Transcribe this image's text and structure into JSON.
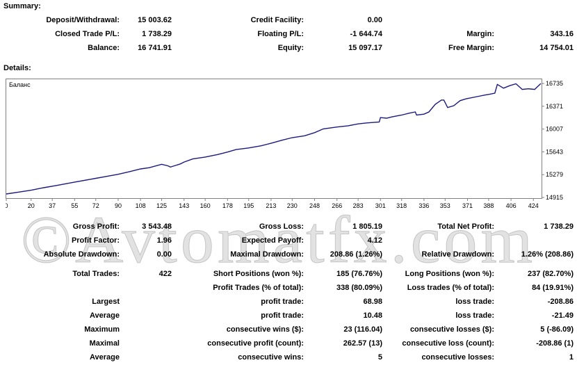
{
  "summary": {
    "title": "Summary:",
    "deposit_label": "Deposit/Withdrawal:",
    "deposit_value": "15 003.62",
    "credit_label": "Credit Facility:",
    "credit_value": "0.00",
    "closed_label": "Closed Trade P/L:",
    "closed_value": "1 738.29",
    "floating_label": "Floating P/L:",
    "floating_value": "-1 644.74",
    "margin_label": "Margin:",
    "margin_value": "343.16",
    "balance_label": "Balance:",
    "balance_value": "16 741.91",
    "equity_label": "Equity:",
    "equity_value": "15 097.17",
    "free_margin_label": "Free Margin:",
    "free_margin_value": "14 754.01"
  },
  "details": {
    "title": "Details:"
  },
  "chart_data": {
    "type": "line",
    "legend": "Баланс",
    "line_color": "#1a1a80",
    "x_ticks": [
      "0",
      "20",
      "37",
      "55",
      "72",
      "90",
      "108",
      "125",
      "143",
      "160",
      "178",
      "195",
      "213",
      "230",
      "248",
      "266",
      "283",
      "301",
      "318",
      "336",
      "353",
      "371",
      "388",
      "406",
      "424"
    ],
    "y_ticks": [
      "16735",
      "16371",
      "16007",
      "15643",
      "15279",
      "14915"
    ],
    "xlim": [
      0,
      430
    ],
    "ylim": [
      14915,
      16780
    ],
    "series": [
      {
        "x": [
          0,
          10,
          20,
          30,
          40,
          55,
          72,
          90,
          100,
          108,
          115,
          125,
          130,
          132,
          140,
          143,
          150,
          160,
          170,
          178,
          185,
          195,
          205,
          213,
          222,
          230,
          240,
          248,
          255,
          266,
          275,
          283,
          290,
          300,
          301,
          306,
          310,
          318,
          324,
          329,
          330,
          336,
          340,
          345,
          350,
          352,
          355,
          360,
          365,
          370,
          380,
          385,
          388,
          393,
          395,
          400,
          405,
          410,
          415,
          420,
          425,
          430
        ],
        "y": [
          14970,
          15000,
          15030,
          15070,
          15105,
          15160,
          15220,
          15285,
          15330,
          15370,
          15390,
          15445,
          15420,
          15400,
          15450,
          15480,
          15530,
          15560,
          15600,
          15640,
          15680,
          15705,
          15740,
          15780,
          15830,
          15870,
          15900,
          15950,
          16010,
          16040,
          16060,
          16090,
          16105,
          16120,
          16190,
          16180,
          16200,
          16230,
          16260,
          16280,
          16230,
          16245,
          16280,
          16400,
          16470,
          16470,
          16350,
          16380,
          16460,
          16490,
          16530,
          16550,
          16560,
          16580,
          16720,
          16660,
          16700,
          16730,
          16640,
          16650,
          16640,
          16735
        ]
      }
    ]
  },
  "stats": {
    "gross_profit_label": "Gross Profit:",
    "gross_profit_value": "3 543.48",
    "gross_loss_label": "Gross Loss:",
    "gross_loss_value": "1 805.19",
    "total_net_label": "Total Net Profit:",
    "total_net_value": "1 738.29",
    "profit_factor_label": "Profit Factor:",
    "profit_factor_value": "1.96",
    "expected_payoff_label": "Expected Payoff:",
    "expected_payoff_value": "4.12",
    "abs_dd_label": "Absolute Drawdown:",
    "abs_dd_value": "0.00",
    "max_dd_label": "Maximal Drawdown:",
    "max_dd_value": "208.86 (1.26%)",
    "rel_dd_label": "Relative Drawdown:",
    "rel_dd_value": "1.26% (208.86)",
    "total_trades_label": "Total Trades:",
    "total_trades_value": "422",
    "short_label": "Short Positions (won %):",
    "short_value": "185 (76.76%)",
    "long_label": "Long Positions (won %):",
    "long_value": "237 (82.70%)",
    "profit_trades_label": "Profit Trades (% of total):",
    "profit_trades_value": "338 (80.09%)",
    "loss_trades_label": "Loss trades (% of total):",
    "loss_trades_value": "84 (19.91%)",
    "largest_label": "Largest",
    "largest_profit_label": "profit trade:",
    "largest_profit_value": "68.98",
    "largest_loss_label": "loss trade:",
    "largest_loss_value": "-208.86",
    "average_label": "Average",
    "average_profit_label": "profit trade:",
    "average_profit_value": "10.48",
    "average_loss_label": "loss trade:",
    "average_loss_value": "-21.49",
    "maximum_label": "Maximum",
    "max_wins_label": "consecutive wins ($):",
    "max_wins_value": "23 (116.04)",
    "max_losses_label": "consecutive losses ($):",
    "max_losses_value": "5 (-86.09)",
    "maximal_label": "Maximal",
    "maximal_profit_label": "consecutive profit (count):",
    "maximal_profit_value": "262.57 (13)",
    "maximal_loss_label": "consecutive loss (count):",
    "maximal_loss_value": "-208.86 (1)",
    "average2_label": "Average",
    "avg_wins_label": "consecutive wins:",
    "avg_wins_value": "5",
    "avg_losses_label": "consecutive losses:",
    "avg_losses_value": "1"
  },
  "watermark": "©Avtomatfx.com"
}
